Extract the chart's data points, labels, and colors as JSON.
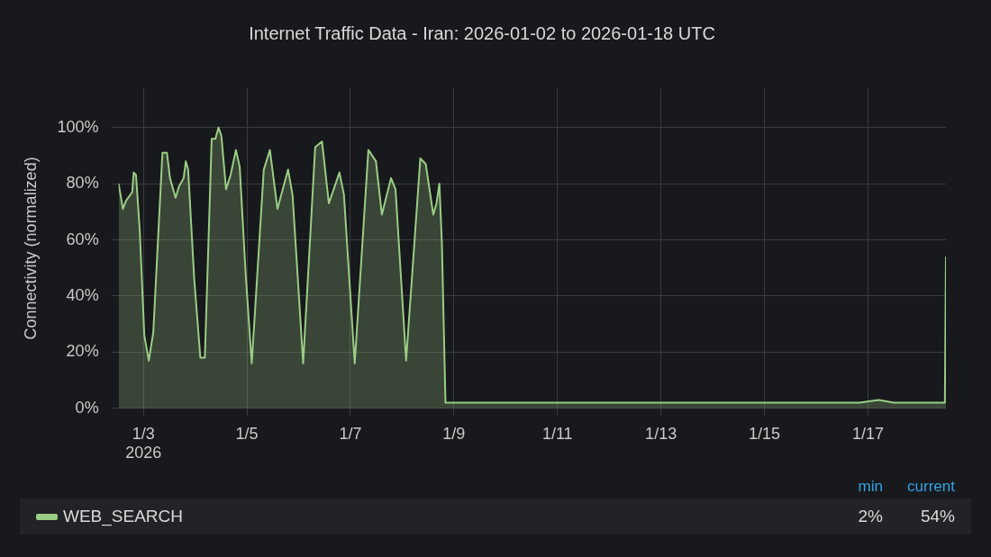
{
  "chart_data": {
    "type": "area",
    "title": "Internet Traffic Data - Iran: 2026-01-02 to 2026-01-18 UTC",
    "ylabel": "Connectivity (normalized)",
    "xlim": [
      "2026-01-02T12:30",
      "2026-01-18T12:10"
    ],
    "xticks": [
      {
        "value": "2026-01-03",
        "label": "1/3\n2026"
      },
      {
        "value": "2026-01-05",
        "label": "1/5"
      },
      {
        "value": "2026-01-07",
        "label": "1/7"
      },
      {
        "value": "2026-01-09",
        "label": "1/9"
      },
      {
        "value": "2026-01-11",
        "label": "1/11"
      },
      {
        "value": "2026-01-13",
        "label": "1/13"
      },
      {
        "value": "2026-01-15",
        "label": "1/15"
      },
      {
        "value": "2026-01-17",
        "label": "1/17"
      }
    ],
    "ylim": [
      0,
      114
    ],
    "yticks": [
      {
        "value": 0,
        "label": "0%"
      },
      {
        "value": 20,
        "label": "20%"
      },
      {
        "value": 40,
        "label": "40%"
      },
      {
        "value": 60,
        "label": "60%"
      },
      {
        "value": 80,
        "label": "80%"
      },
      {
        "value": 100,
        "label": "100%"
      }
    ],
    "grid": true,
    "legend": "bottom",
    "annotations": [
      "min",
      "current",
      "2%",
      "54%"
    ],
    "series": [
      {
        "name": "WEB_SEARCH",
        "color": "#9acd85",
        "x": [
          "2026-01-02T12:30",
          "2026-01-02T14:30",
          "2026-01-02T16:00",
          "2026-01-02T18:50",
          "2026-01-02T19:30",
          "2026-01-02T20:35",
          "2026-01-02T22:20",
          "2026-01-03T00:25",
          "2026-01-03T02:30",
          "2026-01-03T04:35",
          "2026-01-03T08:50",
          "2026-01-03T10:55",
          "2026-01-03T12:20",
          "2026-01-03T14:55",
          "2026-01-03T16:30",
          "2026-01-03T18:40",
          "2026-01-03T19:40",
          "2026-01-03T20:45",
          "2026-01-03T23:35",
          "2026-01-04T02:25",
          "2026-01-04T04:30",
          "2026-01-04T07:40",
          "2026-01-04T09:25",
          "2026-01-04T10:50",
          "2026-01-04T12:10",
          "2026-01-04T14:20",
          "2026-01-04T16:25",
          "2026-01-04T18:55",
          "2026-01-04T20:40",
          "2026-01-04T23:25",
          "2026-01-05T02:15",
          "2026-01-05T07:50",
          "2026-01-05T10:40",
          "2026-01-05T14:10",
          "2026-01-05T19:05",
          "2026-01-05T21:10",
          "2026-01-06T02:05",
          "2026-01-06T07:40",
          "2026-01-06T10:50",
          "2026-01-06T14:00",
          "2026-01-06T18:55",
          "2026-01-06T21:00",
          "2026-01-07T02:00",
          "2026-01-07T08:20",
          "2026-01-07T11:50",
          "2026-01-07T14:35",
          "2026-01-07T18:50",
          "2026-01-07T20:55",
          "2026-01-08T01:50",
          "2026-01-08T08:25",
          "2026-01-08T10:55",
          "2026-01-08T14:25",
          "2026-01-08T15:55",
          "2026-01-08T17:15",
          "2026-01-08T18:25",
          "2026-01-08T20:05",
          "2026-01-09T12:00",
          "2026-01-11T00:00",
          "2026-01-13T00:00",
          "2026-01-15T00:00",
          "2026-01-16T20:00",
          "2026-01-17T05:00",
          "2026-01-17T12:00",
          "2026-01-18T11:40",
          "2026-01-18T12:10"
        ],
        "values": [
          80,
          71,
          74,
          77,
          84,
          83,
          63,
          26,
          17,
          27,
          91,
          91,
          82,
          75,
          79,
          82,
          88,
          85,
          46,
          18,
          18,
          96,
          96,
          100,
          97,
          78,
          83,
          92,
          86,
          48,
          16,
          85,
          92,
          71,
          85,
          76,
          16,
          93,
          95,
          73,
          84,
          76,
          16,
          92,
          88,
          69,
          82,
          78,
          17,
          89,
          87,
          69,
          73,
          80,
          59,
          2,
          2,
          2,
          2,
          2,
          2,
          3,
          2,
          2,
          54
        ]
      }
    ]
  }
}
